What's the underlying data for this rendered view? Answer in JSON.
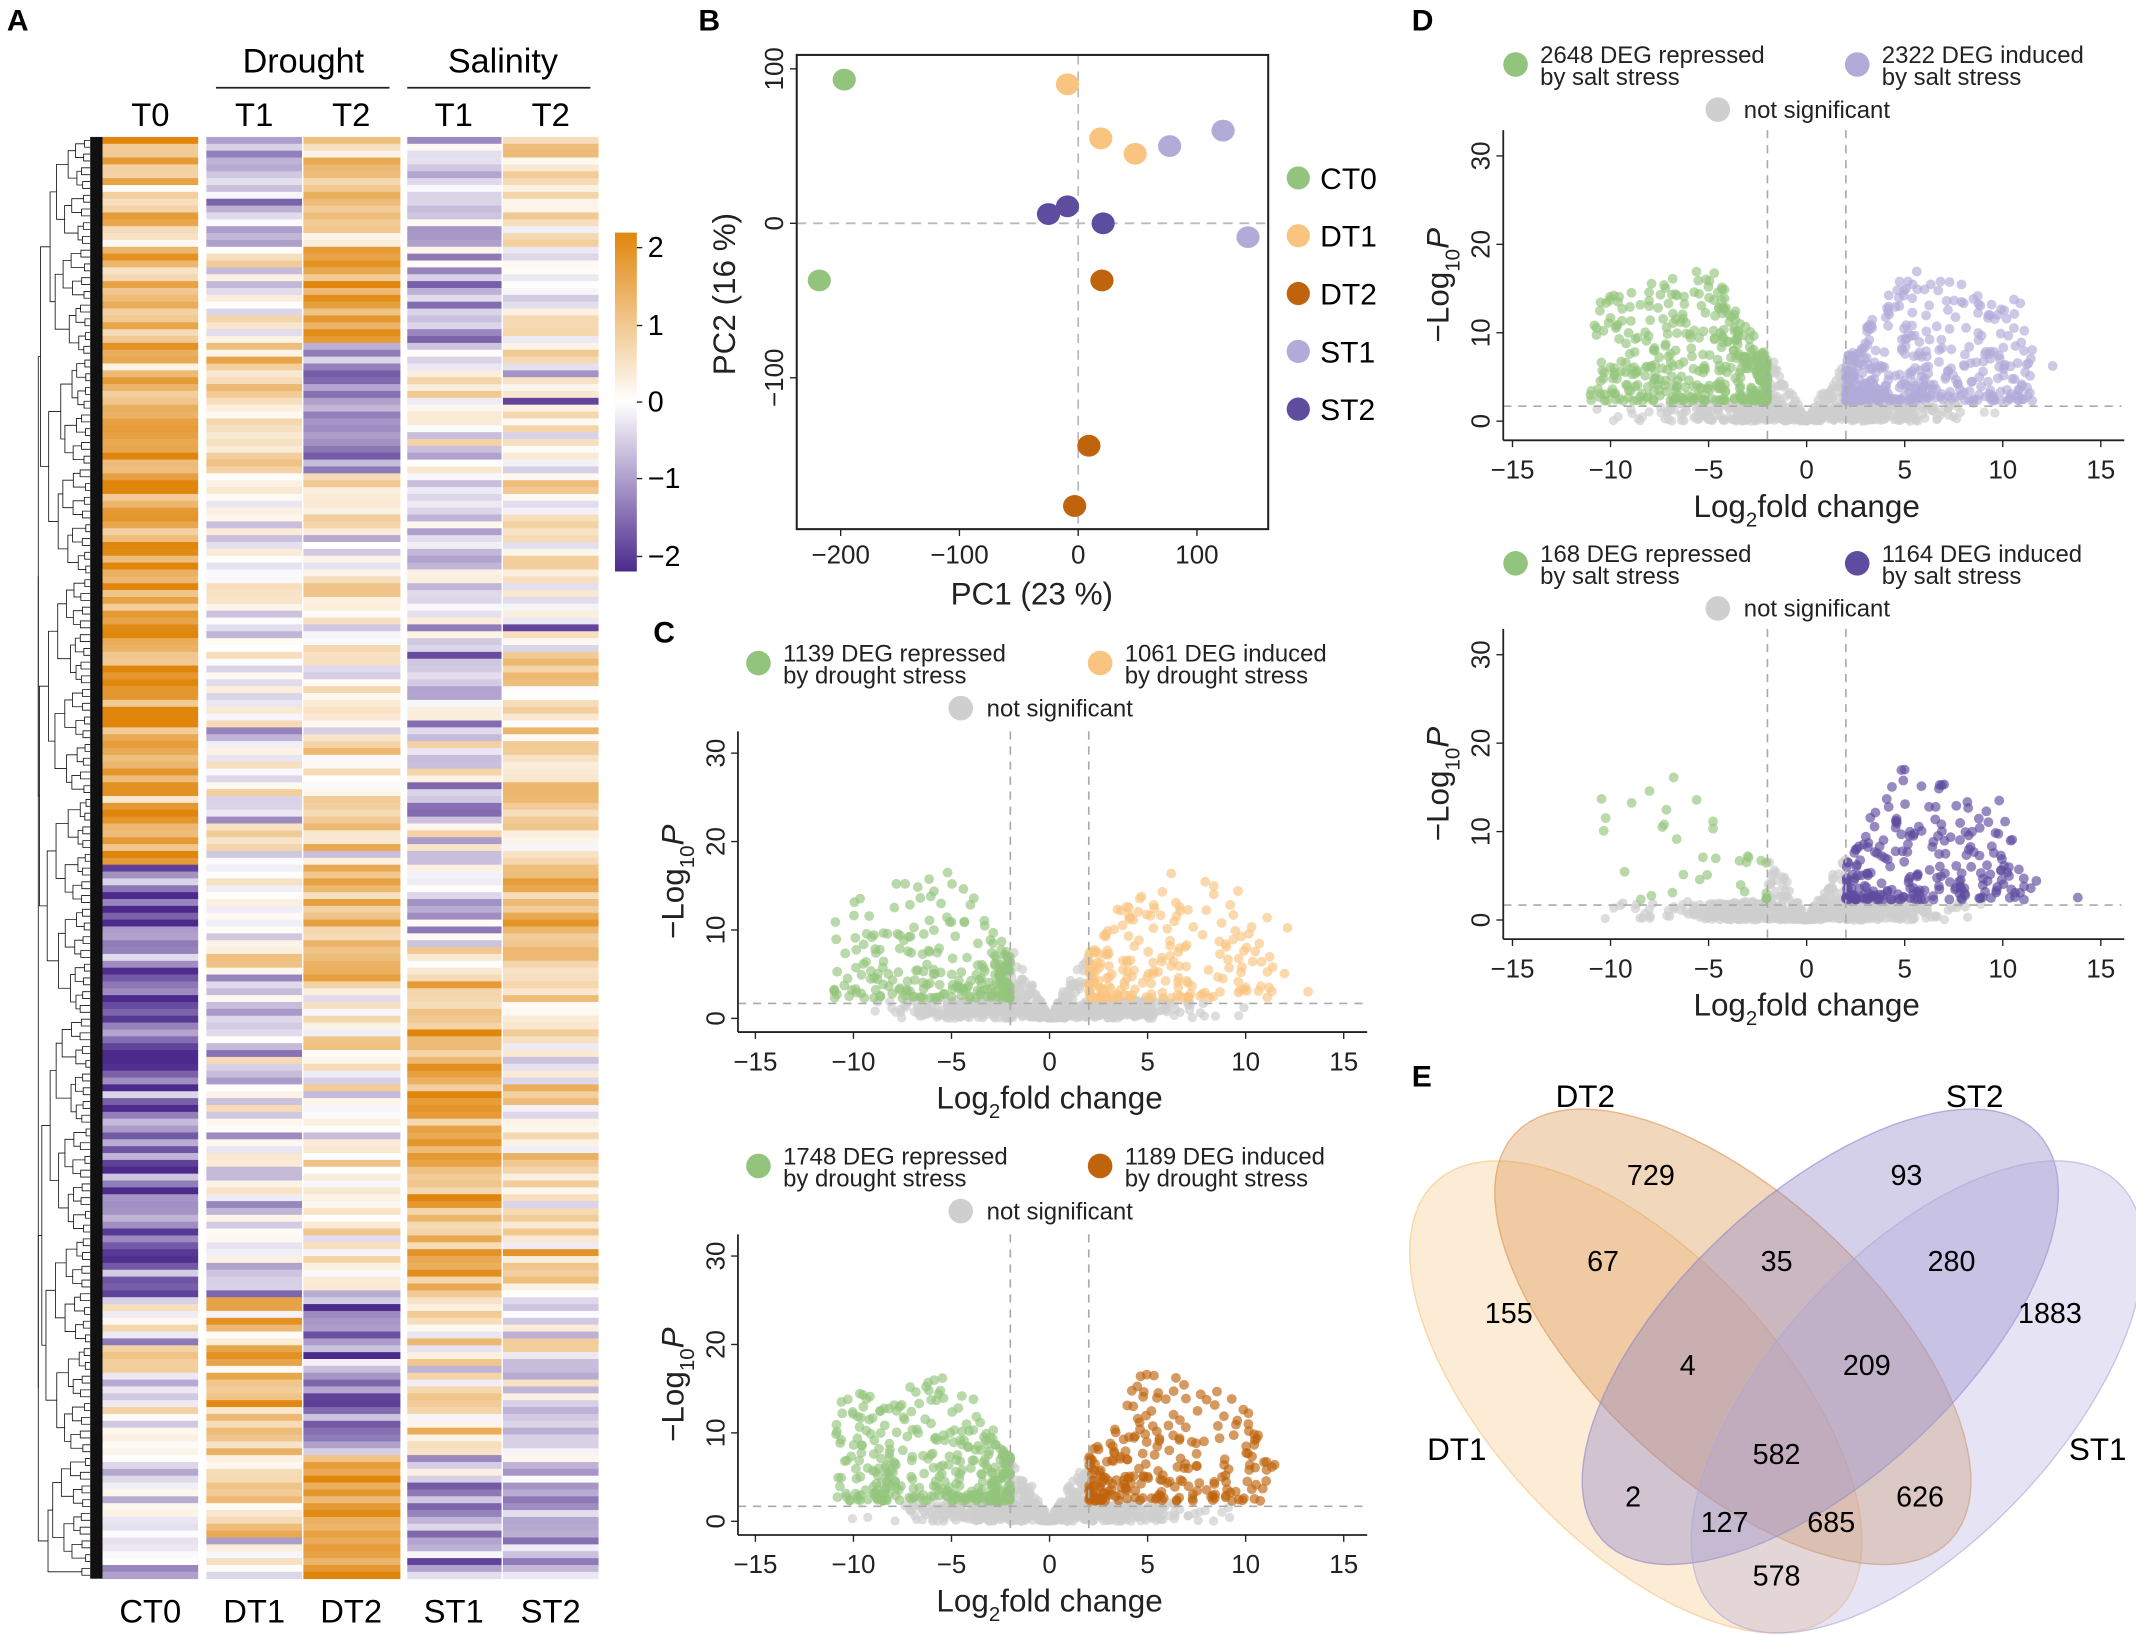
{
  "panel_labels": [
    "A",
    "B",
    "C",
    "D",
    "E"
  ],
  "chart_data": [
    {
      "type": "heatmap",
      "group_headers": [
        "Drought",
        "Salinity"
      ],
      "top_labels": [
        "T0",
        "T1",
        "T2",
        "T1",
        "T2"
      ],
      "columns": [
        "CT0",
        "DT1",
        "DT2",
        "ST1",
        "ST2"
      ],
      "row_dendrogram": true,
      "colorbar": {
        "ticks": [
          "2",
          "1",
          "0",
          "−1",
          "−2"
        ],
        "range": [
          -2.2,
          2.2
        ],
        "colors": {
          "high": "#e0860c",
          "mid": "#ffffff",
          "low": "#4b2a8c"
        }
      }
    },
    {
      "type": "scatter",
      "xlabel": "PC1 (23 %)",
      "ylabel": "PC2 (16 %)",
      "xlim": [
        -237,
        160
      ],
      "ylim": [
        -198,
        109
      ],
      "xticks": [
        "−200",
        "−100",
        "0",
        "100"
      ],
      "xtick_values": [
        -200,
        -100,
        0,
        100
      ],
      "yticks": [
        "100",
        "0",
        "−100"
      ],
      "ytick_values": [
        100,
        0,
        -100
      ],
      "reference_lines": {
        "x": 0,
        "y": 0
      },
      "legend_position": "right",
      "series": [
        {
          "name": "CT0",
          "color": "#93c47d",
          "points": [
            [
              -197,
              93
            ],
            [
              -218,
              -37
            ]
          ]
        },
        {
          "name": "DT1",
          "color": "#f9c480",
          "points": [
            [
              -9,
              90
            ],
            [
              19,
              55
            ],
            [
              48,
              45
            ]
          ]
        },
        {
          "name": "DT2",
          "color": "#bf640c",
          "points": [
            [
              20,
              -37
            ],
            [
              9,
              -144
            ],
            [
              -3,
              -183
            ]
          ]
        },
        {
          "name": "ST1",
          "color": "#b1abd8",
          "points": [
            [
              77,
              50
            ],
            [
              122,
              60
            ],
            [
              143,
              -9
            ]
          ]
        },
        {
          "name": "ST2",
          "color": "#5e4c9f",
          "points": [
            [
              -25,
              6
            ],
            [
              -9,
              11
            ],
            [
              21,
              0
            ]
          ]
        }
      ]
    },
    {
      "type": "scatter",
      "xlim": [
        -15.5,
        15.5
      ],
      "ylim": [
        0,
        32
      ],
      "xticks": [
        "−15",
        "−10",
        "−5",
        "0",
        "5",
        "10",
        "15"
      ],
      "xtick_values": [
        -15,
        -10,
        -5,
        0,
        5,
        10,
        15
      ],
      "yticks": [
        "0",
        "10",
        "20",
        "30"
      ],
      "ytick_values": [
        0,
        10,
        20,
        30
      ],
      "fc_threshold": 2,
      "p_threshold": 2,
      "xlabel": {
        "pre": "Log",
        "sub": "2",
        "post": "fold change"
      },
      "ylabel": {
        "pre": "−Log",
        "sub": "10",
        "post": "P"
      },
      "legend": [
        {
          "line1": "1139 DEG repressed",
          "line2": "by drought stress",
          "color": "#93c47d",
          "count": 1139
        },
        {
          "line1": "1061 DEG induced",
          "line2": "by drought stress",
          "color": "#f9c480",
          "count": 1061
        }
      ],
      "ns_label": "not significant",
      "ns_color": "#cfcfcf",
      "max_y": 24
    },
    {
      "type": "scatter",
      "xlim": [
        -15.5,
        15.5
      ],
      "ylim": [
        0,
        32
      ],
      "xticks": [
        "−15",
        "−10",
        "−5",
        "0",
        "5",
        "10",
        "15"
      ],
      "xtick_values": [
        -15,
        -10,
        -5,
        0,
        5,
        10,
        15
      ],
      "yticks": [
        "0",
        "10",
        "20",
        "30"
      ],
      "ytick_values": [
        0,
        10,
        20,
        30
      ],
      "fc_threshold": 2,
      "p_threshold": 2,
      "xlabel": {
        "pre": "Log",
        "sub": "2",
        "post": "fold change"
      },
      "ylabel": {
        "pre": "−Log",
        "sub": "10",
        "post": "P"
      },
      "legend": [
        {
          "line1": "1748 DEG repressed",
          "line2": "by drought stress",
          "color": "#93c47d",
          "count": 1748
        },
        {
          "line1": "1189 DEG induced",
          "line2": "by drought stress",
          "color": "#bf640c",
          "count": 1189
        }
      ],
      "ns_label": "not significant",
      "ns_color": "#cfcfcf",
      "max_y": 21
    },
    {
      "type": "scatter",
      "xlim": [
        -15.5,
        15.5
      ],
      "ylim": [
        0,
        32
      ],
      "xticks": [
        "−15",
        "−10",
        "−5",
        "0",
        "5",
        "10",
        "15"
      ],
      "xtick_values": [
        -15,
        -10,
        -5,
        0,
        5,
        10,
        15
      ],
      "yticks": [
        "0",
        "10",
        "20",
        "30"
      ],
      "ytick_values": [
        0,
        10,
        20,
        30
      ],
      "fc_threshold": 2,
      "p_threshold": 2,
      "xlabel": {
        "pre": "Log",
        "sub": "2",
        "post": "fold change"
      },
      "ylabel": {
        "pre": "−Log",
        "sub": "10",
        "post": "P"
      },
      "legend": [
        {
          "line1": "2648 DEG repressed",
          "line2": "by salt stress",
          "color": "#93c47d",
          "count": 2648
        },
        {
          "line1": "2322 DEG induced",
          "line2": "by salt stress",
          "color": "#b1abd8",
          "count": 2322
        }
      ],
      "ns_label": "not significant",
      "ns_color": "#cfcfcf",
      "max_y": 30
    },
    {
      "type": "scatter",
      "xlim": [
        -15.5,
        15.5
      ],
      "ylim": [
        0,
        32
      ],
      "xticks": [
        "−15",
        "−10",
        "−5",
        "0",
        "5",
        "10",
        "15"
      ],
      "xtick_values": [
        -15,
        -10,
        -5,
        0,
        5,
        10,
        15
      ],
      "yticks": [
        "0",
        "10",
        "20",
        "30"
      ],
      "ytick_values": [
        0,
        10,
        20,
        30
      ],
      "fc_threshold": 2,
      "p_threshold": 2,
      "xlabel": {
        "pre": "Log",
        "sub": "2",
        "post": "fold change"
      },
      "ylabel": {
        "pre": "−Log",
        "sub": "10",
        "post": "P"
      },
      "legend": [
        {
          "line1": "168 DEG repressed",
          "line2": "by salt stress",
          "color": "#93c47d",
          "count": 168
        },
        {
          "line1": "1164 DEG induced",
          "line2": "by salt stress",
          "color": "#5e4c9f",
          "count": 1164
        }
      ],
      "ns_label": "not significant",
      "ns_color": "#cfcfcf",
      "max_y": 17
    },
    {
      "type": "venn",
      "sets": [
        {
          "name": "DT1",
          "color": "#f6c27c"
        },
        {
          "name": "DT2",
          "color": "#d99550"
        },
        {
          "name": "ST2",
          "color": "#8f84c8"
        },
        {
          "name": "ST1",
          "color": "#aca6da"
        }
      ],
      "regions": [
        {
          "sets": [
            "DT2"
          ],
          "value": "729"
        },
        {
          "sets": [
            "ST2"
          ],
          "value": "93"
        },
        {
          "sets": [
            "DT1",
            "DT2"
          ],
          "value": "67"
        },
        {
          "sets": [
            "DT2",
            "ST2"
          ],
          "value": "35"
        },
        {
          "sets": [
            "ST2",
            "ST1"
          ],
          "value": "280"
        },
        {
          "sets": [
            "DT1"
          ],
          "value": "155"
        },
        {
          "sets": [
            "ST1"
          ],
          "value": "1883"
        },
        {
          "sets": [
            "DT1",
            "DT2",
            "ST2"
          ],
          "value": "4"
        },
        {
          "sets": [
            "DT2",
            "ST2",
            "ST1"
          ],
          "value": "209"
        },
        {
          "sets": [
            "DT1",
            "DT2",
            "ST2",
            "ST1"
          ],
          "value": "582"
        },
        {
          "sets": [
            "DT1",
            "ST2"
          ],
          "value": "2"
        },
        {
          "sets": [
            "DT2",
            "ST1"
          ],
          "value": "626"
        },
        {
          "sets": [
            "DT1",
            "ST2",
            "ST1"
          ],
          "value": "127"
        },
        {
          "sets": [
            "DT1",
            "DT2",
            "ST1"
          ],
          "value": "685"
        },
        {
          "sets": [
            "DT1",
            "ST1"
          ],
          "value": "578"
        }
      ]
    }
  ]
}
